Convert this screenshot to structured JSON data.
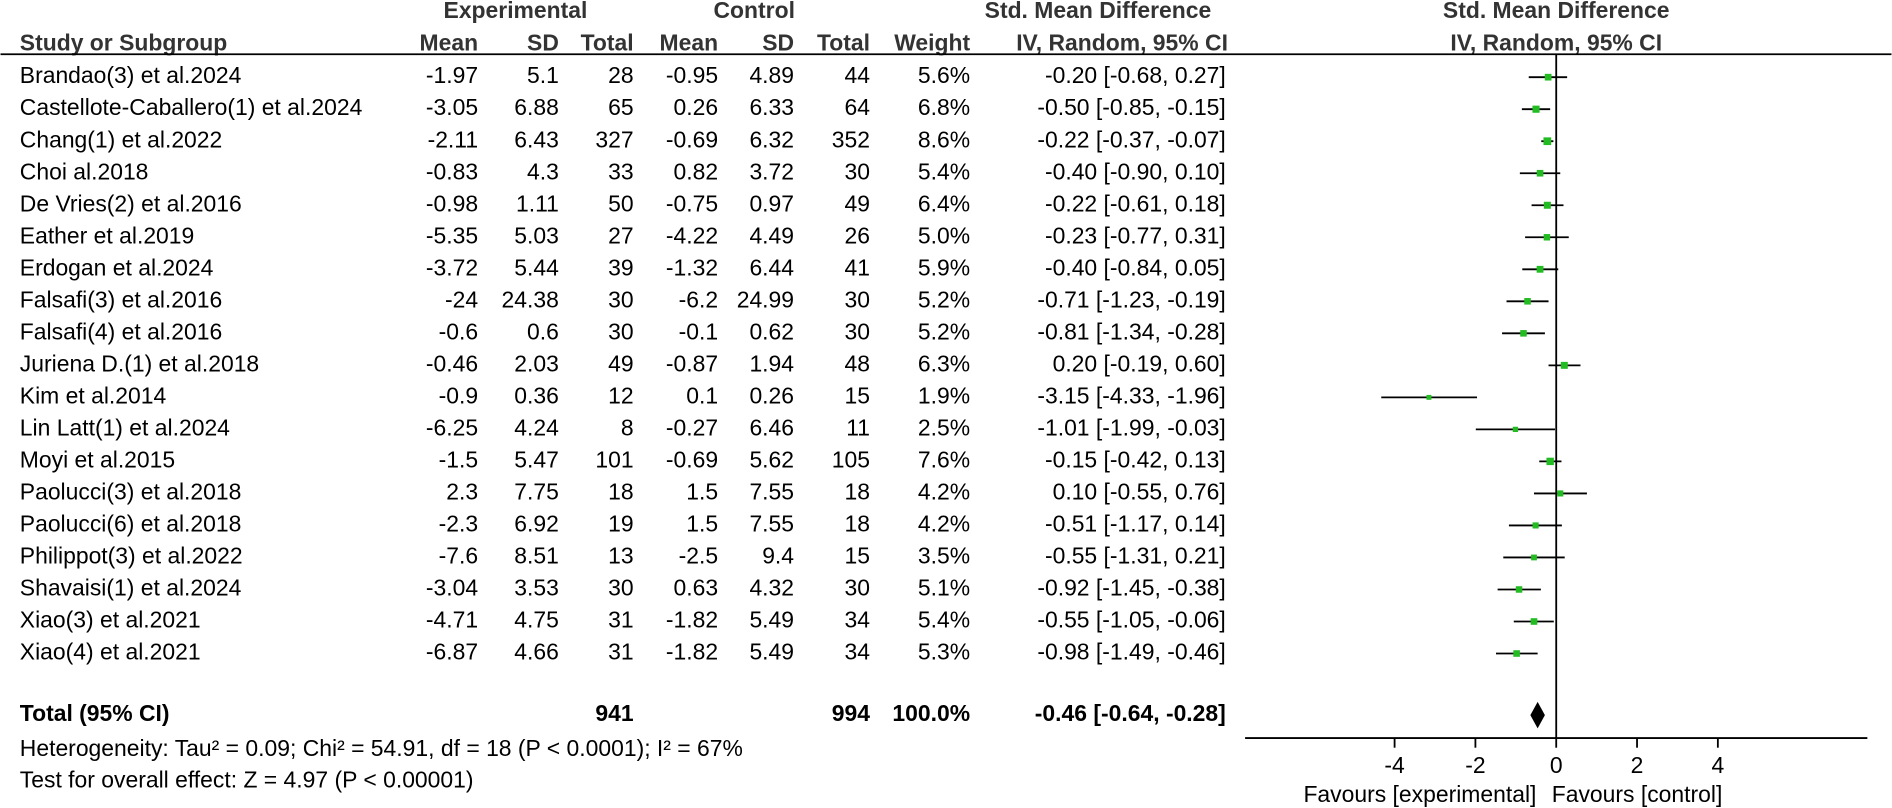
{
  "chart_data": {
    "type": "forest",
    "headers": {
      "experimental": "Experimental",
      "control": "Control",
      "smd_table": "Std. Mean Difference",
      "smd_plot": "Std. Mean Difference",
      "study": "Study or Subgroup",
      "exp_mean": "Mean",
      "exp_sd": "SD",
      "exp_total": "Total",
      "ctl_mean": "Mean",
      "ctl_sd": "SD",
      "ctl_total": "Total",
      "weight": "Weight",
      "method_table": "IV, Random, 95% CI",
      "method_plot": "IV, Random, 95% CI"
    },
    "color": "#22bb22",
    "studies": [
      {
        "name": "Brandao(3) et al.2024",
        "exp_mean": -1.97,
        "exp_sd": 5.1,
        "exp_total": 28,
        "ctl_mean": -0.95,
        "ctl_sd": 4.89,
        "ctl_total": 44,
        "weight": 5.6,
        "weight_label": "5.6%",
        "smd": -0.2,
        "lower": -0.68,
        "upper": 0.27,
        "ci_label": "-0.20 [-0.68, 0.27]"
      },
      {
        "name": "Castellote-Caballero(1) et al.2024",
        "exp_mean": -3.05,
        "exp_sd": 6.88,
        "exp_total": 65,
        "ctl_mean": 0.26,
        "ctl_sd": 6.33,
        "ctl_total": 64,
        "weight": 6.8,
        "weight_label": "6.8%",
        "smd": -0.5,
        "lower": -0.85,
        "upper": -0.15,
        "ci_label": "-0.50 [-0.85, -0.15]"
      },
      {
        "name": "Chang(1) et al.2022",
        "exp_mean": -2.11,
        "exp_sd": 6.43,
        "exp_total": 327,
        "ctl_mean": -0.69,
        "ctl_sd": 6.32,
        "ctl_total": 352,
        "weight": 8.6,
        "weight_label": "8.6%",
        "smd": -0.22,
        "lower": -0.37,
        "upper": -0.07,
        "ci_label": "-0.22 [-0.37, -0.07]"
      },
      {
        "name": "Choi al.2018",
        "exp_mean": -0.83,
        "exp_sd": 4.3,
        "exp_total": 33,
        "ctl_mean": 0.82,
        "ctl_sd": 3.72,
        "ctl_total": 30,
        "weight": 5.4,
        "weight_label": "5.4%",
        "smd": -0.4,
        "lower": -0.9,
        "upper": 0.1,
        "ci_label": "-0.40 [-0.90, 0.10]"
      },
      {
        "name": "De Vries(2) et al.2016",
        "exp_mean": -0.98,
        "exp_sd": 1.11,
        "exp_total": 50,
        "ctl_mean": -0.75,
        "ctl_sd": 0.97,
        "ctl_total": 49,
        "weight": 6.4,
        "weight_label": "6.4%",
        "smd": -0.22,
        "lower": -0.61,
        "upper": 0.18,
        "ci_label": "-0.22 [-0.61, 0.18]"
      },
      {
        "name": "Eather et al.2019",
        "exp_mean": -5.35,
        "exp_sd": 5.03,
        "exp_total": 27,
        "ctl_mean": -4.22,
        "ctl_sd": 4.49,
        "ctl_total": 26,
        "weight": 5.0,
        "weight_label": "5.0%",
        "smd": -0.23,
        "lower": -0.77,
        "upper": 0.31,
        "ci_label": "-0.23 [-0.77, 0.31]"
      },
      {
        "name": "Erdogan et al.2024",
        "exp_mean": -3.72,
        "exp_sd": 5.44,
        "exp_total": 39,
        "ctl_mean": -1.32,
        "ctl_sd": 6.44,
        "ctl_total": 41,
        "weight": 5.9,
        "weight_label": "5.9%",
        "smd": -0.4,
        "lower": -0.84,
        "upper": 0.05,
        "ci_label": "-0.40 [-0.84, 0.05]"
      },
      {
        "name": "Falsafi(3) et al.2016",
        "exp_mean": -24,
        "exp_sd": 24.38,
        "exp_total": 30,
        "ctl_mean": -6.2,
        "ctl_sd": 24.99,
        "ctl_total": 30,
        "weight": 5.2,
        "weight_label": "5.2%",
        "smd": -0.71,
        "lower": -1.23,
        "upper": -0.19,
        "ci_label": "-0.71 [-1.23, -0.19]"
      },
      {
        "name": "Falsafi(4) et al.2016",
        "exp_mean": -0.6,
        "exp_sd": 0.6,
        "exp_total": 30,
        "ctl_mean": -0.1,
        "ctl_sd": 0.62,
        "ctl_total": 30,
        "weight": 5.2,
        "weight_label": "5.2%",
        "smd": -0.81,
        "lower": -1.34,
        "upper": -0.28,
        "ci_label": "-0.81 [-1.34, -0.28]"
      },
      {
        "name": "Juriena D.(1) et al.2018",
        "exp_mean": -0.46,
        "exp_sd": 2.03,
        "exp_total": 49,
        "ctl_mean": -0.87,
        "ctl_sd": 1.94,
        "ctl_total": 48,
        "weight": 6.3,
        "weight_label": "6.3%",
        "smd": 0.2,
        "lower": -0.19,
        "upper": 0.6,
        "ci_label": "0.20 [-0.19, 0.60]"
      },
      {
        "name": "Kim et al.2014",
        "exp_mean": -0.9,
        "exp_sd": 0.36,
        "exp_total": 12,
        "ctl_mean": 0.1,
        "ctl_sd": 0.26,
        "ctl_total": 15,
        "weight": 1.9,
        "weight_label": "1.9%",
        "smd": -3.15,
        "lower": -4.33,
        "upper": -1.96,
        "ci_label": "-3.15 [-4.33, -1.96]"
      },
      {
        "name": "Lin Latt(1) et al.2024",
        "exp_mean": -6.25,
        "exp_sd": 4.24,
        "exp_total": 8,
        "ctl_mean": -0.27,
        "ctl_sd": 6.46,
        "ctl_total": 11,
        "weight": 2.5,
        "weight_label": "2.5%",
        "smd": -1.01,
        "lower": -1.99,
        "upper": -0.03,
        "ci_label": "-1.01 [-1.99, -0.03]"
      },
      {
        "name": "Moyi et al.2015",
        "exp_mean": -1.5,
        "exp_sd": 5.47,
        "exp_total": 101,
        "ctl_mean": -0.69,
        "ctl_sd": 5.62,
        "ctl_total": 105,
        "weight": 7.6,
        "weight_label": "7.6%",
        "smd": -0.15,
        "lower": -0.42,
        "upper": 0.13,
        "ci_label": "-0.15 [-0.42, 0.13]"
      },
      {
        "name": "Paolucci(3) et al.2018",
        "exp_mean": 2.3,
        "exp_sd": 7.75,
        "exp_total": 18,
        "ctl_mean": 1.5,
        "ctl_sd": 7.55,
        "ctl_total": 18,
        "weight": 4.2,
        "weight_label": "4.2%",
        "smd": 0.1,
        "lower": -0.55,
        "upper": 0.76,
        "ci_label": "0.10 [-0.55, 0.76]"
      },
      {
        "name": "Paolucci(6) et al.2018",
        "exp_mean": -2.3,
        "exp_sd": 6.92,
        "exp_total": 19,
        "ctl_mean": 1.5,
        "ctl_sd": 7.55,
        "ctl_total": 18,
        "weight": 4.2,
        "weight_label": "4.2%",
        "smd": -0.51,
        "lower": -1.17,
        "upper": 0.14,
        "ci_label": "-0.51 [-1.17, 0.14]"
      },
      {
        "name": "Philippot(3) et al.2022",
        "exp_mean": -7.6,
        "exp_sd": 8.51,
        "exp_total": 13,
        "ctl_mean": -2.5,
        "ctl_sd": 9.4,
        "ctl_total": 15,
        "weight": 3.5,
        "weight_label": "3.5%",
        "smd": -0.55,
        "lower": -1.31,
        "upper": 0.21,
        "ci_label": "-0.55 [-1.31, 0.21]"
      },
      {
        "name": "Shavaisi(1) et al.2024",
        "exp_mean": -3.04,
        "exp_sd": 3.53,
        "exp_total": 30,
        "ctl_mean": 0.63,
        "ctl_sd": 4.32,
        "ctl_total": 30,
        "weight": 5.1,
        "weight_label": "5.1%",
        "smd": -0.92,
        "lower": -1.45,
        "upper": -0.38,
        "ci_label": "-0.92 [-1.45, -0.38]"
      },
      {
        "name": "Xiao(3) et al.2021",
        "exp_mean": -4.71,
        "exp_sd": 4.75,
        "exp_total": 31,
        "ctl_mean": -1.82,
        "ctl_sd": 5.49,
        "ctl_total": 34,
        "weight": 5.4,
        "weight_label": "5.4%",
        "smd": -0.55,
        "lower": -1.05,
        "upper": -0.06,
        "ci_label": "-0.55 [-1.05, -0.06]"
      },
      {
        "name": "Xiao(4) et al.2021",
        "exp_mean": -6.87,
        "exp_sd": 4.66,
        "exp_total": 31,
        "ctl_mean": -1.82,
        "ctl_sd": 5.49,
        "ctl_total": 34,
        "weight": 5.3,
        "weight_label": "5.3%",
        "smd": -0.98,
        "lower": -1.49,
        "upper": -0.46,
        "ci_label": "-0.98 [-1.49, -0.46]"
      }
    ],
    "total": {
      "name": "Total (95% CI)",
      "exp_total": 941,
      "ctl_total": 994,
      "weight": 100,
      "weight_label": "100.0%",
      "smd": -0.46,
      "lower": -0.64,
      "upper": -0.28,
      "ci_label": "-0.46 [-0.64, -0.28]"
    },
    "heterogeneity": "Heterogeneity: Tau² = 0.09; Chi² = 54.91, df = 18 (P < 0.0001); I² = 67%",
    "overall_test": "Test for overall effect: Z = 4.97 (P < 0.00001)",
    "xlim": [
      -7.7,
      7.7
    ],
    "xticks": [
      -4,
      -2,
      0,
      2,
      4
    ],
    "favours_left": "Favours [experimental]",
    "favours_right": "Favours [control]"
  }
}
